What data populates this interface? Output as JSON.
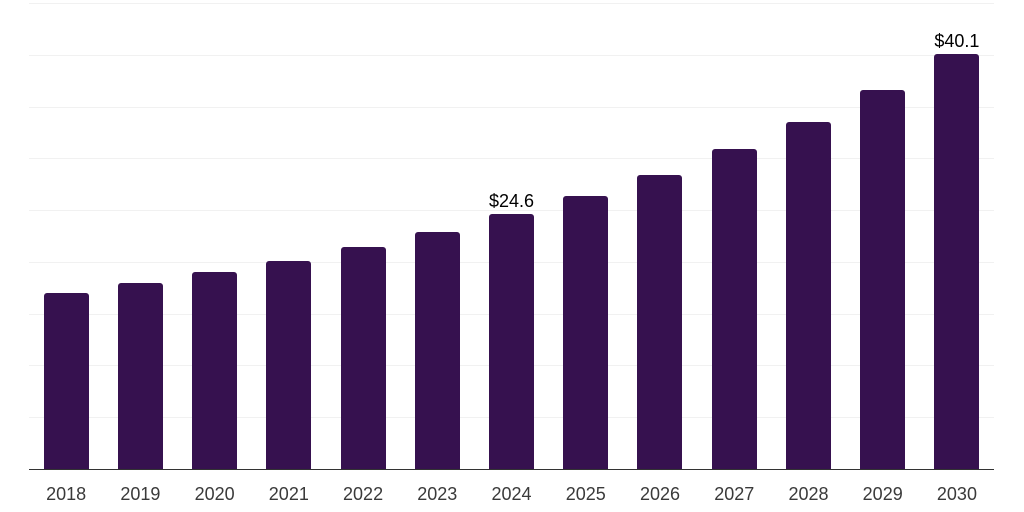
{
  "colors": {
    "background": "#ffffff",
    "bar": "#36114f",
    "gridline": "#f1f1f1",
    "axis": "#333333",
    "year_label": "#3a3a3a",
    "value_label": "#000000"
  },
  "chart_data": {
    "type": "bar",
    "categories": [
      "2018",
      "2019",
      "2020",
      "2021",
      "2022",
      "2023",
      "2024",
      "2025",
      "2026",
      "2027",
      "2028",
      "2029",
      "2030"
    ],
    "values": [
      17.0,
      18.0,
      19.0,
      20.1,
      21.4,
      22.9,
      24.6,
      26.4,
      28.4,
      30.9,
      33.5,
      36.6,
      40.1
    ],
    "bar_labels": [
      "",
      "",
      "",
      "",
      "",
      "",
      "$24.6",
      "",
      "",
      "",
      "",
      "",
      "$40.1"
    ],
    "title": "",
    "xlabel": "",
    "ylabel": "",
    "ylim": [
      0,
      45
    ],
    "gridline_interval": 5,
    "grid": "horizontal",
    "y_axis_tick_labels_visible": false,
    "legend": "none",
    "currency_prefix": "$"
  }
}
